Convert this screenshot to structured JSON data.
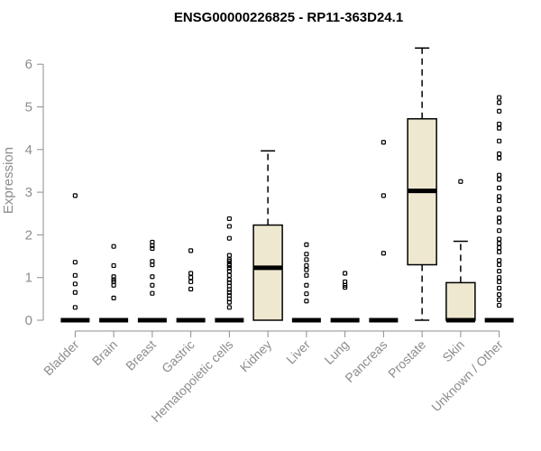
{
  "chart_data": {
    "type": "boxplot",
    "title": "ENSG00000226825 - RP11-363D24.1",
    "ylabel": "Expression",
    "xlabel": "",
    "ylim": [
      0,
      6.3
    ],
    "yticks": [
      0,
      1,
      2,
      3,
      4,
      5,
      6
    ],
    "grid": false,
    "box_color": "#efe8d0",
    "axis_color": "#8c8c8c",
    "categories": [
      "Bladder",
      "Brain",
      "Breast",
      "Gastric",
      "Hematopoietic cells",
      "Kidney",
      "Liver",
      "Lung",
      "Pancreas",
      "Prostate",
      "Skin",
      "Unknown / Other"
    ],
    "boxes": [
      {
        "category": "Bladder",
        "whisker_low": 0,
        "q1": 0,
        "median": 0,
        "q3": 0,
        "whisker_high": 0,
        "outliers": [
          2.92,
          1.36,
          1.05,
          0.85,
          0.65,
          0.3
        ]
      },
      {
        "category": "Brain",
        "whisker_low": 0,
        "q1": 0,
        "median": 0,
        "q3": 0,
        "whisker_high": 0,
        "outliers": [
          1.73,
          1.28,
          1.02,
          0.95,
          0.9,
          0.82,
          0.52
        ]
      },
      {
        "category": "Breast",
        "whisker_low": 0,
        "q1": 0,
        "median": 0,
        "q3": 0,
        "whisker_high": 0,
        "outliers": [
          1.83,
          1.75,
          1.68,
          1.38,
          1.3,
          1.02,
          0.82,
          0.63
        ]
      },
      {
        "category": "Gastric",
        "whisker_low": 0,
        "q1": 0,
        "median": 0,
        "q3": 0,
        "whisker_high": 0,
        "outliers": [
          1.63,
          1.1,
          1.0,
          0.9,
          0.73
        ]
      },
      {
        "category": "Hematopoietic cells",
        "whisker_low": 0,
        "q1": 0,
        "median": 0,
        "q3": 0,
        "whisker_high": 0,
        "outliers": [
          2.38,
          2.2,
          1.92,
          1.52,
          1.42,
          1.38,
          1.32,
          1.28,
          1.22,
          1.15,
          1.05,
          0.95,
          0.88,
          0.8,
          0.72,
          0.65,
          0.58,
          0.5,
          0.42,
          0.3
        ]
      },
      {
        "category": "Kidney",
        "whisker_low": 0,
        "q1": 0,
        "median": 1.23,
        "q3": 2.23,
        "whisker_high": 3.97,
        "outliers": []
      },
      {
        "category": "Liver",
        "whisker_low": 0,
        "q1": 0,
        "median": 0,
        "q3": 0,
        "whisker_high": 0,
        "outliers": [
          1.77,
          1.55,
          1.42,
          1.28,
          1.18,
          1.05,
          0.82,
          0.62,
          0.45
        ]
      },
      {
        "category": "Lung",
        "whisker_low": 0,
        "q1": 0,
        "median": 0,
        "q3": 0,
        "whisker_high": 0,
        "outliers": [
          1.1,
          0.9,
          0.82,
          0.77
        ]
      },
      {
        "category": "Pancreas",
        "whisker_low": 0,
        "q1": 0,
        "median": 0,
        "q3": 0,
        "whisker_high": 0,
        "outliers": [
          4.17,
          2.92,
          1.57
        ]
      },
      {
        "category": "Prostate",
        "whisker_low": 0,
        "q1": 1.3,
        "median": 3.03,
        "q3": 4.72,
        "whisker_high": 6.38,
        "outliers": []
      },
      {
        "category": "Skin",
        "whisker_low": 0,
        "q1": 0,
        "median": 0,
        "q3": 0.88,
        "whisker_high": 1.85,
        "outliers": [
          3.25
        ]
      },
      {
        "category": "Unknown / Other",
        "whisker_low": 0,
        "q1": 0,
        "median": 0,
        "q3": 0,
        "whisker_high": 0,
        "outliers": [
          5.22,
          5.1,
          4.9,
          4.6,
          4.5,
          4.2,
          3.9,
          3.8,
          3.4,
          3.3,
          3.1,
          2.9,
          2.8,
          2.6,
          2.4,
          2.3,
          2.1,
          1.9,
          1.8,
          1.7,
          1.6,
          1.4,
          1.3,
          1.15,
          1.0,
          0.9,
          0.75,
          0.6,
          0.48,
          0.35
        ]
      }
    ]
  }
}
